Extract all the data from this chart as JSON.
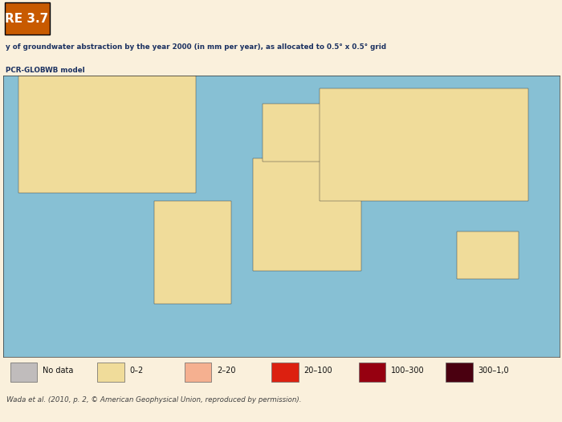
{
  "title_label": "RE 3.7",
  "title_box_color": "#C85A00",
  "subtitle_line1": "y of groundwater abstraction by the year 2000 (in mm per year), as allocated to 0.5° x 0.5° grid",
  "subtitle_line2": "PCR-GLOBWB model",
  "background_color": "#FAF0DC",
  "map_ocean_color": "#87C0D4",
  "map_land_base_color": "#F0DC9A",
  "map_nodata_color": "#C0BCBC",
  "map_border_color": "#222222",
  "legend_colors": [
    "#C0BCBC",
    "#F0DC9A",
    "#F5B090",
    "#DC2010",
    "#960010",
    "#4A0010"
  ],
  "legend_labels": [
    "No data",
    "0–2",
    "2–20",
    "20–100",
    "100–300",
    "300–1,0"
  ],
  "source_text": "Wada et al. (2010, p. 2, © American Geophysical Union, reproduced by permission).",
  "grid_color": "#888888",
  "grid_lw": 0.5,
  "border_lw": 0.3,
  "fig_w": 7.0,
  "fig_h": 5.25,
  "dpi": 100
}
